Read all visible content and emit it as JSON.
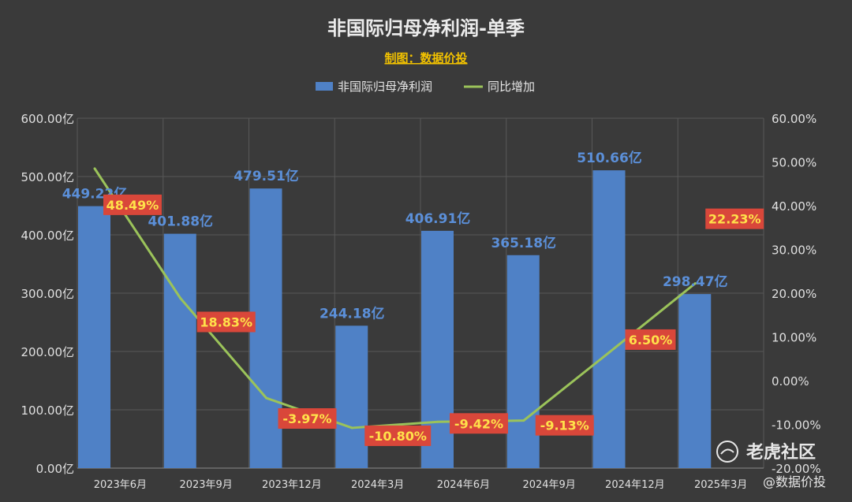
{
  "chart_data": {
    "type": "bar+line",
    "title": "非国际归母净利润-单季",
    "subtitle": "制图：数据价投",
    "categories": [
      "2023年6月",
      "2023年9月",
      "2023年12月",
      "2024年3月",
      "2024年6月",
      "2024年9月",
      "2024年12月",
      "2025年3月"
    ],
    "series": [
      {
        "name": "非国际归母净利润",
        "type": "bar",
        "axis": "left",
        "color": "#4f81c6",
        "values": [
          449.22,
          401.88,
          479.51,
          244.18,
          406.91,
          365.18,
          510.66,
          298.47
        ],
        "labels": [
          "449.22亿",
          "401.88亿",
          "479.51亿",
          "244.18亿",
          "406.91亿",
          "365.18亿",
          "510.66亿",
          "298.47亿"
        ]
      },
      {
        "name": "同比增加",
        "type": "line",
        "axis": "right",
        "color": "#9bc35a",
        "values": [
          48.49,
          18.83,
          -3.97,
          -10.8,
          -9.42,
          -9.13,
          6.5,
          22.23
        ],
        "labels": [
          "48.49%",
          "18.83%",
          "-3.97%",
          "-10.80%",
          "-9.42%",
          "-9.13%",
          "6.50%",
          "22.23%"
        ]
      }
    ],
    "left_axis": {
      "min": 0,
      "max": 600,
      "ticks": [
        "0.00亿",
        "100.00亿",
        "200.00亿",
        "300.00亿",
        "400.00亿",
        "500.00亿",
        "600.00亿"
      ]
    },
    "right_axis": {
      "min": -20,
      "max": 60,
      "ticks": [
        "-20.00%",
        "-10.00%",
        "0.00%",
        "10.00%",
        "20.00%",
        "30.00%",
        "40.00%",
        "50.00%",
        "60.00%"
      ]
    },
    "grid": true,
    "legend": "top-center"
  },
  "watermark": {
    "brand": "老虎社区",
    "handle": "@数据价投"
  },
  "colors": {
    "background": "#3a3a3a",
    "bar": "#4f81c6",
    "line": "#9bc35a",
    "label_box": "#d9473a",
    "line_label_text": "#ffe14a",
    "bar_label_text": "#5b8fd8"
  }
}
